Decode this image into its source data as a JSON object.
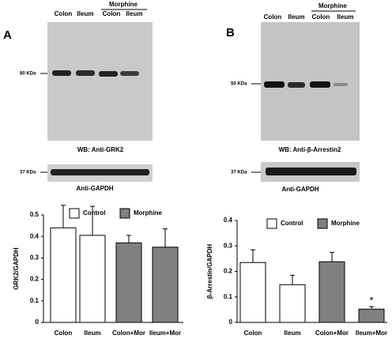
{
  "figure": {
    "panel_a": {
      "label": "A",
      "lanes": [
        "Colon",
        "Ileum",
        "Colon",
        "Ileum"
      ],
      "group": "Morphine",
      "marker": "80 KDa",
      "blot": "WB: Anti-GRK2",
      "loading_marker": "37 KDa",
      "loading": "Anti-GAPDH"
    },
    "panel_b": {
      "label": "B",
      "lanes": [
        "Colon",
        "Ileum",
        "Colon",
        "Ileum"
      ],
      "group": "Morphine",
      "marker": "50 KDa",
      "blot": "WB: Anti-β-Arrestin2",
      "loading_marker": "37 KDa",
      "loading": "Anti-GAPDH"
    }
  },
  "chart_data": [
    {
      "type": "bar",
      "ylabel": "GRK2/GAPDH",
      "categories": [
        "Colon",
        "Ileum",
        "Colon+Mor",
        "Ileum+Mor"
      ],
      "values": [
        0.44,
        0.405,
        0.37,
        0.35
      ],
      "errors": [
        0.105,
        0.135,
        0.035,
        0.085
      ],
      "colors": [
        "#ffffff",
        "#ffffff",
        "#808080",
        "#808080"
      ],
      "legend": [
        {
          "name": "Control",
          "color": "#ffffff"
        },
        {
          "name": "Morphine",
          "color": "#808080"
        }
      ],
      "ylim": [
        0,
        0.5
      ],
      "yticks": [
        0,
        0.1,
        0.2,
        0.3,
        0.4,
        0.5
      ]
    },
    {
      "type": "bar",
      "ylabel": "β-Arrestin/GAPDH",
      "categories": [
        "Colon",
        "Ileum",
        "Colon+Mor",
        "Ileum+Mor"
      ],
      "values": [
        0.235,
        0.148,
        0.238,
        0.052
      ],
      "errors": [
        0.05,
        0.037,
        0.037,
        0.01
      ],
      "colors": [
        "#ffffff",
        "#ffffff",
        "#808080",
        "#808080"
      ],
      "legend": [
        {
          "name": "Control",
          "color": "#ffffff"
        },
        {
          "name": "Morphine",
          "color": "#808080"
        }
      ],
      "annotations": [
        {
          "index": 3,
          "text": "*"
        }
      ],
      "ylim": [
        0,
        0.4
      ],
      "yticks": [
        0,
        0.1,
        0.2,
        0.3,
        0.4
      ]
    }
  ]
}
